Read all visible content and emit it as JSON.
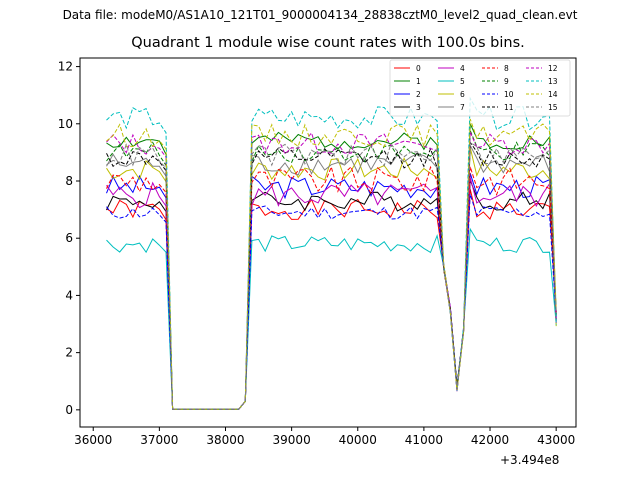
{
  "chart_data": {
    "type": "line",
    "suptitle": "Data file: modeM0/AS1A10_121T01_9000004134_28838cztM0_level2_quad_clean.evt",
    "title": "Quadrant 1 module wise count rates with 100.0s bins.",
    "xlabel": "",
    "ylabel": "",
    "x_offset_label": "+3.494e8",
    "xlim": [
      35800,
      43300
    ],
    "ylim": [
      -0.6,
      12.3
    ],
    "x_ticks": [
      36000,
      37000,
      38000,
      39000,
      40000,
      41000,
      42000,
      43000
    ],
    "x_tick_labels": [
      "36000",
      "37000",
      "38000",
      "39000",
      "40000",
      "41000",
      "42000",
      "43000"
    ],
    "y_ticks": [
      0,
      2,
      4,
      6,
      8,
      10,
      12
    ],
    "y_tick_labels": [
      "0",
      "2",
      "4",
      "6",
      "8",
      "10",
      "12"
    ],
    "grid": false,
    "legend_location": "upper-right",
    "x_start": 36200,
    "x_step": 100,
    "n_points": 69,
    "gap_segment": {
      "x_from": 37200,
      "x_to": 38200,
      "value": 0.02
    },
    "dip_segment": {
      "x_points": [
        41300,
        41400,
        41500,
        41600,
        41700
      ],
      "values": [
        5.0,
        3.5,
        0.75,
        2.8,
        10.0
      ]
    },
    "end_value": 3.2,
    "series": [
      {
        "name": "0",
        "color": "#ff0000",
        "dash": "solid",
        "level": 7.0,
        "wiggle": 0.35,
        "seed": 1
      },
      {
        "name": "1",
        "color": "#008000",
        "dash": "solid",
        "level": 9.4,
        "wiggle": 0.3,
        "seed": 2
      },
      {
        "name": "2",
        "color": "#0000ff",
        "dash": "solid",
        "level": 7.8,
        "wiggle": 0.4,
        "seed": 3
      },
      {
        "name": "3",
        "color": "#000000",
        "dash": "solid",
        "level": 7.3,
        "wiggle": 0.35,
        "seed": 4
      },
      {
        "name": "4",
        "color": "#bf00bf",
        "dash": "solid",
        "level": 7.5,
        "wiggle": 0.45,
        "seed": 5
      },
      {
        "name": "5",
        "color": "#00bfbf",
        "dash": "solid",
        "level": 5.8,
        "wiggle": 0.3,
        "seed": 6
      },
      {
        "name": "6",
        "color": "#bfbf00",
        "dash": "solid",
        "level": 8.4,
        "wiggle": 0.4,
        "seed": 7
      },
      {
        "name": "7",
        "color": "#808080",
        "dash": "solid",
        "level": 8.6,
        "wiggle": 0.4,
        "seed": 8
      },
      {
        "name": "8",
        "color": "#ff0000",
        "dash": "dashed",
        "level": 8.0,
        "wiggle": 0.5,
        "seed": 9
      },
      {
        "name": "9",
        "color": "#008000",
        "dash": "dashed",
        "level": 9.0,
        "wiggle": 0.35,
        "seed": 10
      },
      {
        "name": "10",
        "color": "#0000ff",
        "dash": "dashed",
        "level": 6.9,
        "wiggle": 0.25,
        "seed": 11
      },
      {
        "name": "11",
        "color": "#000000",
        "dash": "dashed",
        "level": 8.8,
        "wiggle": 0.35,
        "seed": 12
      },
      {
        "name": "12",
        "color": "#bf00bf",
        "dash": "dashed",
        "level": 9.3,
        "wiggle": 0.4,
        "seed": 13
      },
      {
        "name": "13",
        "color": "#00bfbf",
        "dash": "dashed",
        "level": 10.2,
        "wiggle": 0.4,
        "seed": 14
      },
      {
        "name": "14",
        "color": "#bfbf00",
        "dash": "dashed",
        "level": 9.6,
        "wiggle": 0.4,
        "seed": 15
      },
      {
        "name": "15",
        "color": "#808080",
        "dash": "dashed",
        "level": 8.9,
        "wiggle": 0.4,
        "seed": 16
      }
    ]
  }
}
